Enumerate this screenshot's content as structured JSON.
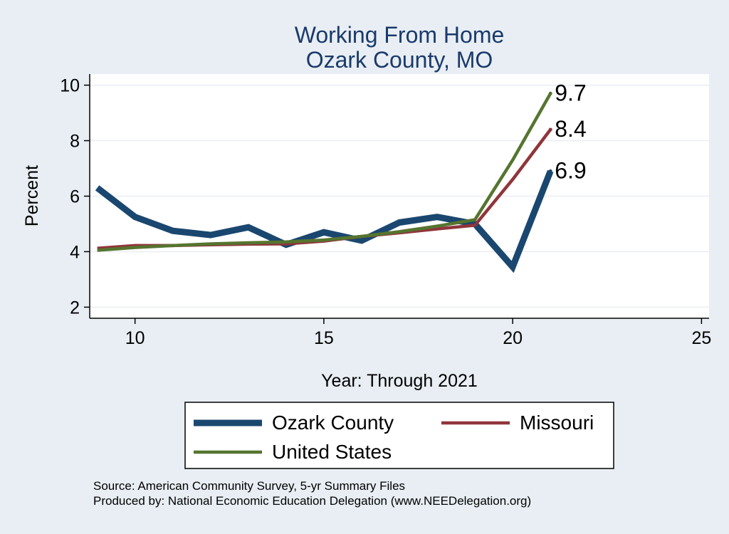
{
  "chart_data": {
    "type": "line",
    "title": "Working From Home",
    "subtitle": "Ozark County, MO",
    "xlabel": "Year: Through 2021",
    "ylabel": "Percent",
    "xlim": [
      8.8,
      25.2
    ],
    "ylim": [
      1.6,
      10.4
    ],
    "xticks": [
      10,
      15,
      20,
      25
    ],
    "yticks": [
      2,
      4,
      6,
      8,
      10
    ],
    "grid": true,
    "series": [
      {
        "name": "Ozark County",
        "color": "#1a476f",
        "x": [
          9,
          10,
          11,
          12,
          13,
          14,
          15,
          16,
          17,
          18,
          19,
          20,
          21
        ],
        "values": [
          6.3,
          5.25,
          4.75,
          4.6,
          4.88,
          4.25,
          4.7,
          4.4,
          5.05,
          5.25,
          5.0,
          3.45,
          6.9
        ],
        "end_label": "6.9"
      },
      {
        "name": "Missouri",
        "color": "#90353b",
        "x": [
          9,
          10,
          11,
          12,
          13,
          14,
          15,
          16,
          17,
          18,
          19,
          20,
          21
        ],
        "values": [
          4.12,
          4.22,
          4.22,
          4.25,
          4.27,
          4.28,
          4.38,
          4.55,
          4.68,
          4.82,
          4.95,
          6.6,
          8.4
        ],
        "end_label": "8.4"
      },
      {
        "name": "United States",
        "color": "#55752f",
        "x": [
          9,
          10,
          11,
          12,
          13,
          14,
          15,
          16,
          17,
          18,
          19,
          20,
          21
        ],
        "values": [
          4.05,
          4.15,
          4.22,
          4.28,
          4.32,
          4.35,
          4.42,
          4.55,
          4.72,
          4.92,
          5.15,
          7.3,
          9.7
        ],
        "end_label": "9.7"
      }
    ],
    "legend": {
      "position": "bottom",
      "entries": [
        "Ozark County",
        "Missouri",
        "United States"
      ]
    },
    "source": "Source: American Community Survey, 5-yr Summary Files",
    "produced_by": "Produced by: National Economic Education Delegation (www.NEEDelegation.org)"
  }
}
